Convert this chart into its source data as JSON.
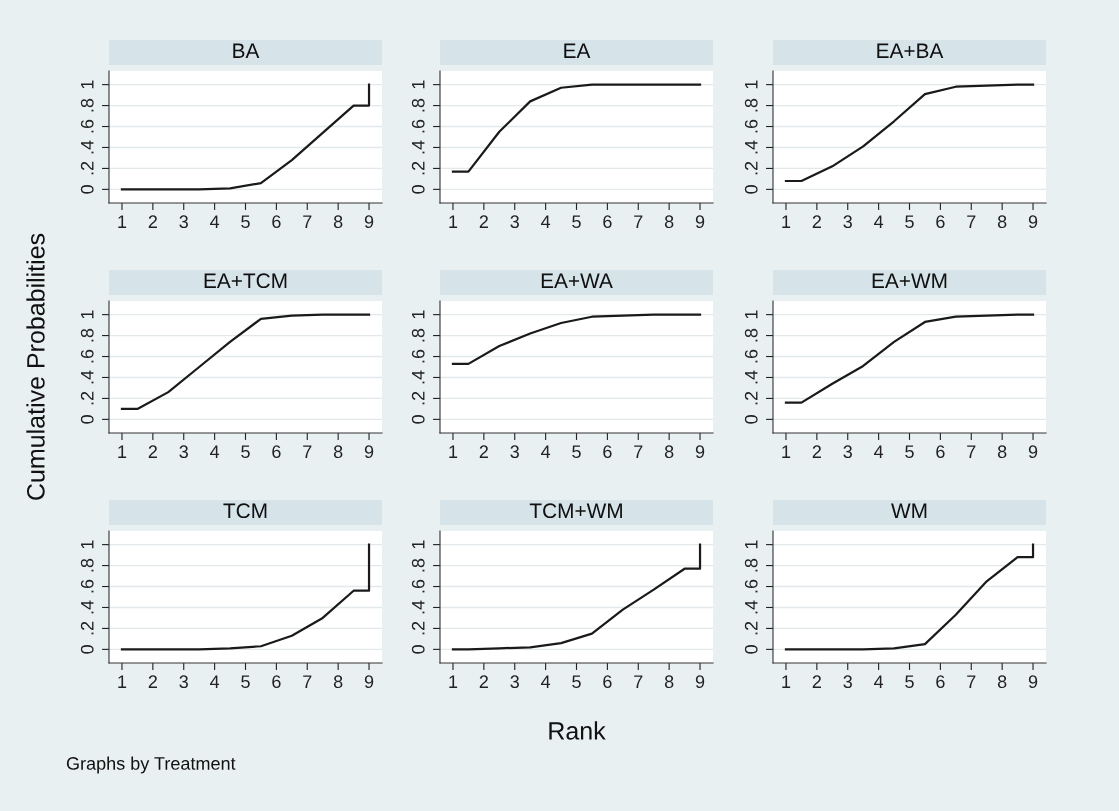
{
  "chart_data": [
    {
      "type": "line",
      "title": "BA",
      "x": [
        1,
        1.5,
        2.5,
        3.5,
        4.5,
        5.5,
        6.5,
        7.5,
        8.5,
        9,
        9
      ],
      "series": [
        {
          "color": "#1a1a1a",
          "values": [
            0,
            0,
            0,
            0,
            0.01,
            0.06,
            0.28,
            0.54,
            0.8,
            0.8,
            1.0
          ]
        }
      ],
      "xlim": [
        0.58,
        9.42
      ],
      "xticks": [
        1,
        2,
        3,
        4,
        5,
        6,
        7,
        8,
        9
      ],
      "ylim": [
        -0.13,
        1.13
      ],
      "yticks": [
        {
          "value": 0,
          "label": "0"
        },
        {
          "value": 0.2,
          "label": ".2"
        },
        {
          "value": 0.4,
          "label": ".4"
        },
        {
          "value": 0.6,
          "label": ".6"
        },
        {
          "value": 0.8,
          "label": ".8"
        },
        {
          "value": 1,
          "label": "1"
        }
      ],
      "grid": "y"
    },
    {
      "type": "line",
      "title": "EA",
      "x": [
        1,
        1.5,
        2.5,
        3.5,
        4.5,
        5.5,
        6.5,
        7.5,
        8.5,
        9,
        9
      ],
      "series": [
        {
          "color": "#1a1a1a",
          "values": [
            0.17,
            0.17,
            0.55,
            0.84,
            0.97,
            1.0,
            1.0,
            1.0,
            1.0,
            1.0,
            1.0
          ]
        }
      ],
      "xlim": [
        0.58,
        9.42
      ],
      "xticks": [
        1,
        2,
        3,
        4,
        5,
        6,
        7,
        8,
        9
      ],
      "ylim": [
        -0.13,
        1.13
      ],
      "yticks": [
        {
          "value": 0,
          "label": "0"
        },
        {
          "value": 0.2,
          "label": ".2"
        },
        {
          "value": 0.4,
          "label": ".4"
        },
        {
          "value": 0.6,
          "label": ".6"
        },
        {
          "value": 0.8,
          "label": ".8"
        },
        {
          "value": 1,
          "label": "1"
        }
      ],
      "grid": "y"
    },
    {
      "type": "line",
      "title": "EA+BA",
      "x": [
        1,
        1.5,
        2.5,
        3.5,
        4.5,
        5.5,
        6.5,
        7.5,
        8.5,
        9,
        9
      ],
      "series": [
        {
          "color": "#1a1a1a",
          "values": [
            0.08,
            0.08,
            0.22,
            0.41,
            0.65,
            0.91,
            0.98,
            0.99,
            1.0,
            1.0,
            1.0
          ]
        }
      ],
      "xlim": [
        0.58,
        9.42
      ],
      "xticks": [
        1,
        2,
        3,
        4,
        5,
        6,
        7,
        8,
        9
      ],
      "ylim": [
        -0.13,
        1.13
      ],
      "yticks": [
        {
          "value": 0,
          "label": "0"
        },
        {
          "value": 0.2,
          "label": ".2"
        },
        {
          "value": 0.4,
          "label": ".4"
        },
        {
          "value": 0.6,
          "label": ".6"
        },
        {
          "value": 0.8,
          "label": ".8"
        },
        {
          "value": 1,
          "label": "1"
        }
      ],
      "grid": "y"
    },
    {
      "type": "line",
      "title": "EA+TCM",
      "ylabel": "Cumulative Probabilities",
      "x": [
        1,
        1.5,
        2.5,
        3.5,
        4.5,
        5.5,
        6.5,
        7.5,
        8.5,
        9,
        9
      ],
      "series": [
        {
          "color": "#1a1a1a",
          "values": [
            0.1,
            0.1,
            0.26,
            0.5,
            0.74,
            0.96,
            0.99,
            1.0,
            1.0,
            1.0,
            1.0
          ]
        }
      ],
      "xlim": [
        0.58,
        9.42
      ],
      "xticks": [
        1,
        2,
        3,
        4,
        5,
        6,
        7,
        8,
        9
      ],
      "ylim": [
        -0.13,
        1.13
      ],
      "yticks": [
        {
          "value": 0,
          "label": "0"
        },
        {
          "value": 0.2,
          "label": ".2"
        },
        {
          "value": 0.4,
          "label": ".4"
        },
        {
          "value": 0.6,
          "label": ".6"
        },
        {
          "value": 0.8,
          "label": ".8"
        },
        {
          "value": 1,
          "label": "1"
        }
      ],
      "grid": "y"
    },
    {
      "type": "line",
      "title": "EA+WA",
      "x": [
        1,
        1.5,
        2.5,
        3.5,
        4.5,
        5.5,
        6.5,
        7.5,
        8.5,
        9,
        9
      ],
      "series": [
        {
          "color": "#1a1a1a",
          "values": [
            0.53,
            0.53,
            0.7,
            0.82,
            0.92,
            0.98,
            0.99,
            1.0,
            1.0,
            1.0,
            1.0
          ]
        }
      ],
      "xlim": [
        0.58,
        9.42
      ],
      "xticks": [
        1,
        2,
        3,
        4,
        5,
        6,
        7,
        8,
        9
      ],
      "ylim": [
        -0.13,
        1.13
      ],
      "yticks": [
        {
          "value": 0,
          "label": "0"
        },
        {
          "value": 0.2,
          "label": ".2"
        },
        {
          "value": 0.4,
          "label": ".4"
        },
        {
          "value": 0.6,
          "label": ".6"
        },
        {
          "value": 0.8,
          "label": ".8"
        },
        {
          "value": 1,
          "label": "1"
        }
      ],
      "grid": "y"
    },
    {
      "type": "line",
      "title": "EA+WM",
      "x": [
        1,
        1.5,
        2.5,
        3.5,
        4.5,
        5.5,
        6.5,
        7.5,
        8.5,
        9,
        9
      ],
      "series": [
        {
          "color": "#1a1a1a",
          "values": [
            0.16,
            0.16,
            0.34,
            0.51,
            0.74,
            0.93,
            0.98,
            0.99,
            1.0,
            1.0,
            1.0
          ]
        }
      ],
      "xlim": [
        0.58,
        9.42
      ],
      "xticks": [
        1,
        2,
        3,
        4,
        5,
        6,
        7,
        8,
        9
      ],
      "ylim": [
        -0.13,
        1.13
      ],
      "yticks": [
        {
          "value": 0,
          "label": "0"
        },
        {
          "value": 0.2,
          "label": ".2"
        },
        {
          "value": 0.4,
          "label": ".4"
        },
        {
          "value": 0.6,
          "label": ".6"
        },
        {
          "value": 0.8,
          "label": ".8"
        },
        {
          "value": 1,
          "label": "1"
        }
      ],
      "grid": "y"
    },
    {
      "type": "line",
      "title": "TCM",
      "annotations": [
        "Graphs by Treatment"
      ],
      "x": [
        1,
        1.5,
        2.5,
        3.5,
        4.5,
        5.5,
        6.5,
        7.5,
        8.5,
        9,
        9
      ],
      "series": [
        {
          "color": "#1a1a1a",
          "values": [
            0,
            0,
            0,
            0,
            0.01,
            0.03,
            0.13,
            0.3,
            0.56,
            0.56,
            1.0
          ]
        }
      ],
      "xlim": [
        0.58,
        9.42
      ],
      "xticks": [
        1,
        2,
        3,
        4,
        5,
        6,
        7,
        8,
        9
      ],
      "ylim": [
        -0.13,
        1.13
      ],
      "yticks": [
        {
          "value": 0,
          "label": "0"
        },
        {
          "value": 0.2,
          "label": ".2"
        },
        {
          "value": 0.4,
          "label": ".4"
        },
        {
          "value": 0.6,
          "label": ".6"
        },
        {
          "value": 0.8,
          "label": ".8"
        },
        {
          "value": 1,
          "label": "1"
        }
      ],
      "grid": "y"
    },
    {
      "type": "line",
      "title": "TCM+WM",
      "xlabel": "Rank",
      "x": [
        1,
        1.5,
        2.5,
        3.5,
        4.5,
        5.5,
        6.5,
        7.5,
        8.5,
        9,
        9
      ],
      "series": [
        {
          "color": "#1a1a1a",
          "values": [
            0,
            0,
            0.01,
            0.02,
            0.06,
            0.15,
            0.38,
            0.57,
            0.77,
            0.77,
            1.0
          ]
        }
      ],
      "xlim": [
        0.58,
        9.42
      ],
      "xticks": [
        1,
        2,
        3,
        4,
        5,
        6,
        7,
        8,
        9
      ],
      "ylim": [
        -0.13,
        1.13
      ],
      "yticks": [
        {
          "value": 0,
          "label": "0"
        },
        {
          "value": 0.2,
          "label": ".2"
        },
        {
          "value": 0.4,
          "label": ".4"
        },
        {
          "value": 0.6,
          "label": ".6"
        },
        {
          "value": 0.8,
          "label": ".8"
        },
        {
          "value": 1,
          "label": "1"
        }
      ],
      "grid": "y"
    },
    {
      "type": "line",
      "title": "WM",
      "x": [
        1,
        1.5,
        2.5,
        3.5,
        4.5,
        5.5,
        6.5,
        7.5,
        8.5,
        9,
        9
      ],
      "series": [
        {
          "color": "#1a1a1a",
          "values": [
            0,
            0,
            0,
            0,
            0.01,
            0.05,
            0.33,
            0.65,
            0.88,
            0.88,
            1.0
          ]
        }
      ],
      "xlim": [
        0.58,
        9.42
      ],
      "xticks": [
        1,
        2,
        3,
        4,
        5,
        6,
        7,
        8,
        9
      ],
      "ylim": [
        -0.13,
        1.13
      ],
      "yticks": [
        {
          "value": 0,
          "label": "0"
        },
        {
          "value": 0.2,
          "label": ".2"
        },
        {
          "value": 0.4,
          "label": ".4"
        },
        {
          "value": 0.6,
          "label": ".6"
        },
        {
          "value": 0.8,
          "label": ".8"
        },
        {
          "value": 1,
          "label": "1"
        }
      ],
      "grid": "y"
    }
  ]
}
